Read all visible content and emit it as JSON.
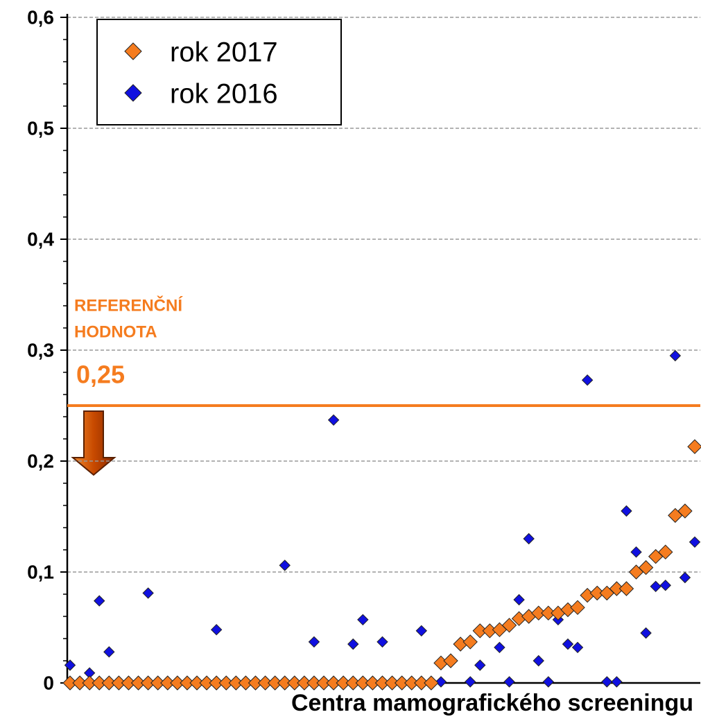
{
  "chart_data": {
    "type": "scatter",
    "x_label": "Centra mamografického screeningu",
    "categories": [
      null,
      null,
      null,
      null,
      null,
      null,
      null,
      null,
      null,
      null,
      null,
      null,
      null,
      null,
      null,
      null,
      null,
      null,
      null,
      null,
      null,
      null,
      null,
      null,
      null,
      null,
      null,
      null,
      null,
      null,
      null,
      null,
      null,
      null,
      null,
      null,
      null,
      null,
      null,
      null,
      null,
      null,
      null,
      null,
      null,
      null,
      null,
      null,
      null,
      null,
      null,
      null,
      null,
      null,
      null,
      null,
      null,
      null,
      null,
      null,
      null,
      null,
      null,
      null,
      null
    ],
    "series": [
      {
        "name": "rok 2017",
        "color": "#f57c1f",
        "values": [
          0,
          0,
          0,
          0,
          0,
          0,
          0,
          0,
          0,
          0,
          0,
          0,
          0,
          0,
          0,
          0,
          0,
          0,
          0,
          0,
          0,
          0,
          0,
          0,
          0,
          0,
          0,
          0,
          0,
          0,
          0,
          0,
          0,
          0,
          0,
          0,
          0,
          0,
          0.018,
          0.02,
          0.035,
          0.037,
          0.047,
          0.047,
          0.048,
          0.052,
          0.058,
          0.06,
          0.063,
          0.063,
          0.063,
          0.066,
          0.068,
          0.079,
          0.081,
          0.081,
          0.085,
          0.085,
          0.1,
          0.104,
          0.114,
          0.118,
          0.151,
          0.155,
          0.213
        ]
      },
      {
        "name": "rok 2016",
        "color": "#1010e0",
        "values": [
          0.016,
          null,
          0.009,
          0.074,
          0.028,
          null,
          null,
          null,
          0.081,
          null,
          null,
          null,
          null,
          null,
          null,
          0.048,
          null,
          null,
          null,
          null,
          null,
          null,
          0.106,
          null,
          null,
          0.037,
          null,
          0.237,
          null,
          0.035,
          0.057,
          null,
          0.037,
          null,
          null,
          null,
          0.047,
          null,
          0.001,
          null,
          null,
          0.001,
          0.016,
          null,
          0.032,
          0.001,
          0.075,
          0.13,
          0.02,
          0.001,
          0.057,
          0.035,
          0.032,
          0.273,
          null,
          0.001,
          0.001,
          0.155,
          0.118,
          0.045,
          0.087,
          0.088,
          0.295,
          0.095,
          0.127
        ]
      }
    ],
    "ylim": [
      0,
      0.6
    ],
    "yticks": [
      0,
      {
        "value": 0.1,
        "label": "0,1"
      },
      {
        "value": 0.2,
        "label": "0,2"
      },
      {
        "value": 0.3,
        "label": "0,3"
      },
      {
        "value": 0.4,
        "label": "0,4"
      },
      {
        "value": 0.5,
        "label": "0,5"
      },
      {
        "value": 0.6,
        "label": "0,6"
      }
    ],
    "yticks_minor": [
      0.02,
      0.04,
      0.06,
      0.08,
      0.12,
      0.14,
      0.16,
      0.18,
      0.22,
      0.24,
      0.26,
      0.28,
      0.32,
      0.34,
      0.36,
      0.38,
      0.42,
      0.44,
      0.46,
      0.48,
      0.52,
      0.54,
      0.56,
      0.58
    ],
    "grid": true,
    "legend": "upper left",
    "reference": {
      "value": 0.25,
      "label": "0,25",
      "text": [
        "REFERENČNÍ",
        "HODNOTA"
      ],
      "color": "#f57c1f"
    }
  }
}
